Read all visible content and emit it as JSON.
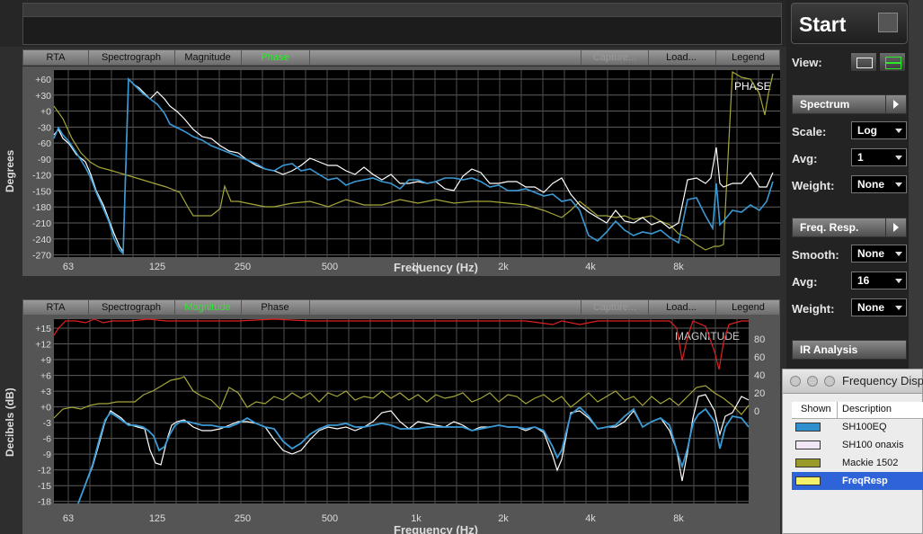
{
  "top_tabs": [
    {
      "label": "RTA",
      "state": "normal"
    },
    {
      "label": "Spectrograph",
      "state": "normal"
    },
    {
      "label": "Magnitude",
      "state": "normal"
    },
    {
      "label": "Phase",
      "state": "active"
    },
    {
      "label": "Capture...",
      "state": "disabled"
    },
    {
      "label": "Load...",
      "state": "normal"
    },
    {
      "label": "Legend",
      "state": "normal"
    }
  ],
  "bottom_tabs": [
    {
      "label": "RTA",
      "state": "normal"
    },
    {
      "label": "Spectrograph",
      "state": "normal"
    },
    {
      "label": "Magnitude",
      "state": "active"
    },
    {
      "label": "Phase",
      "state": "normal"
    },
    {
      "label": "Capture...",
      "state": "disabled"
    },
    {
      "label": "Load...",
      "state": "normal"
    },
    {
      "label": "Legend",
      "state": "normal"
    }
  ],
  "phase_plot": {
    "overlay": "PHASE",
    "ylabel": "Degrees",
    "xlabel": "Frequency (Hz)",
    "yticks": [
      "+60",
      "+30",
      "+0",
      "-30",
      "-60",
      "-90",
      "-120",
      "-150",
      "-180",
      "-210",
      "-240",
      "-270"
    ],
    "xticks": [
      "63",
      "125",
      "250",
      "500",
      "1k",
      "2k",
      "4k",
      "8k"
    ]
  },
  "magnitude_plot": {
    "overlay": "MAGNITUDE",
    "ylabel": "Decibels (dB)",
    "xlabel": "Frequency (Hz)",
    "yticks": [
      "+15",
      "+12",
      "+9",
      "+6",
      "+3",
      "+0",
      "-3",
      "-6",
      "-9",
      "-12",
      "-15",
      "-18"
    ],
    "coherence_ticks": [
      "80",
      "60",
      "40",
      "20",
      "0"
    ],
    "xticks": [
      "63",
      "125",
      "250",
      "500",
      "1k",
      "2k",
      "4k",
      "8k"
    ]
  },
  "controls": {
    "start_label": "Start",
    "view_label": "View:",
    "spectrum_section": "Spectrum",
    "scale_label": "Scale:",
    "scale_value": "Log",
    "avg_label": "Avg:",
    "spectrum_avg_value": "1",
    "weight_label": "Weight:",
    "spectrum_weight_value": "None",
    "freqresp_section": "Freq. Resp.",
    "smooth_label": "Smooth:",
    "smooth_value": "None",
    "freqresp_avg_value": "16",
    "freqresp_weight_value": "None",
    "ir_section": "IR Analysis"
  },
  "legend_window": {
    "title": "Frequency Disp",
    "col_shown": "Shown",
    "col_description": "Description",
    "rows": [
      {
        "description": "SH100EQ",
        "color": "#2f8fcf",
        "selected": false
      },
      {
        "description": "SH100 onaxis",
        "color": "#f0e6f4",
        "selected": false
      },
      {
        "description": "Mackie 1502",
        "color": "#9a9a2a",
        "selected": false
      },
      {
        "description": "FreqResp",
        "color": "#f5f06a",
        "selected": true
      }
    ]
  },
  "colors": {
    "series_blue": "#3a9ad6",
    "series_white": "#ffffff",
    "series_olive": "#a6a63a",
    "series_red": "#e02020",
    "active_tab": "#2ee82e",
    "grid": "#6a6a6a"
  }
}
